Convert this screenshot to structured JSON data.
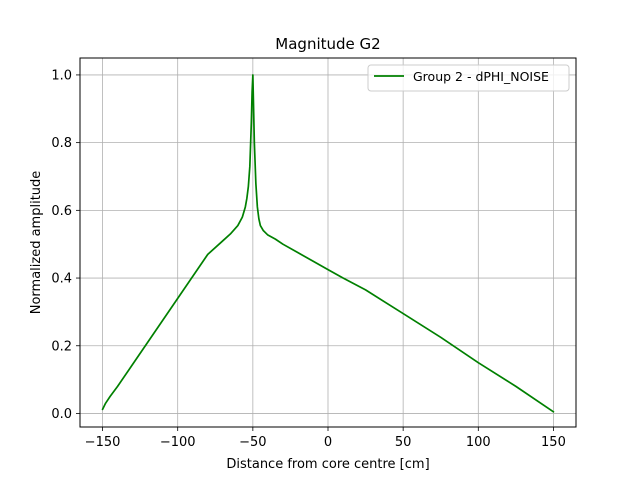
{
  "chart_data": {
    "type": "line",
    "title": "Magnitude G2",
    "xlabel": "Distance from core centre [cm]",
    "ylabel": "Normalized amplitude",
    "xlim": [
      -165,
      165
    ],
    "ylim": [
      -0.04,
      1.05
    ],
    "xticks": [
      -150,
      -100,
      -50,
      0,
      50,
      100,
      150
    ],
    "xtick_labels": [
      "−150",
      "−100",
      "−50",
      "0",
      "50",
      "100",
      "150"
    ],
    "yticks": [
      0.0,
      0.2,
      0.4,
      0.6,
      0.8,
      1.0
    ],
    "ytick_labels": [
      "0.0",
      "0.2",
      "0.4",
      "0.6",
      "0.8",
      "1.0"
    ],
    "grid": true,
    "legend_position": "top-right",
    "series": [
      {
        "name": "Group 2 - dPHI_NOISE",
        "color": "#008000",
        "x": [
          -150,
          -148,
          -145,
          -140,
          -130,
          -120,
          -110,
          -100,
          -90,
          -80,
          -70,
          -65,
          -60,
          -57,
          -55,
          -54,
          -53,
          -52,
          -51,
          -50.5,
          -50,
          -49.5,
          -49,
          -48,
          -47,
          -46,
          -45,
          -43,
          -40,
          -35,
          -30,
          -20,
          -10,
          0,
          10,
          25,
          50,
          75,
          100,
          125,
          150
        ],
        "y": [
          0.012,
          0.03,
          0.05,
          0.08,
          0.145,
          0.21,
          0.275,
          0.34,
          0.405,
          0.47,
          0.51,
          0.53,
          0.555,
          0.58,
          0.61,
          0.635,
          0.67,
          0.73,
          0.86,
          0.95,
          1.0,
          0.9,
          0.8,
          0.68,
          0.61,
          0.575,
          0.555,
          0.54,
          0.527,
          0.515,
          0.5,
          0.475,
          0.45,
          0.425,
          0.4,
          0.365,
          0.295,
          0.225,
          0.15,
          0.08,
          0.005
        ]
      }
    ]
  }
}
